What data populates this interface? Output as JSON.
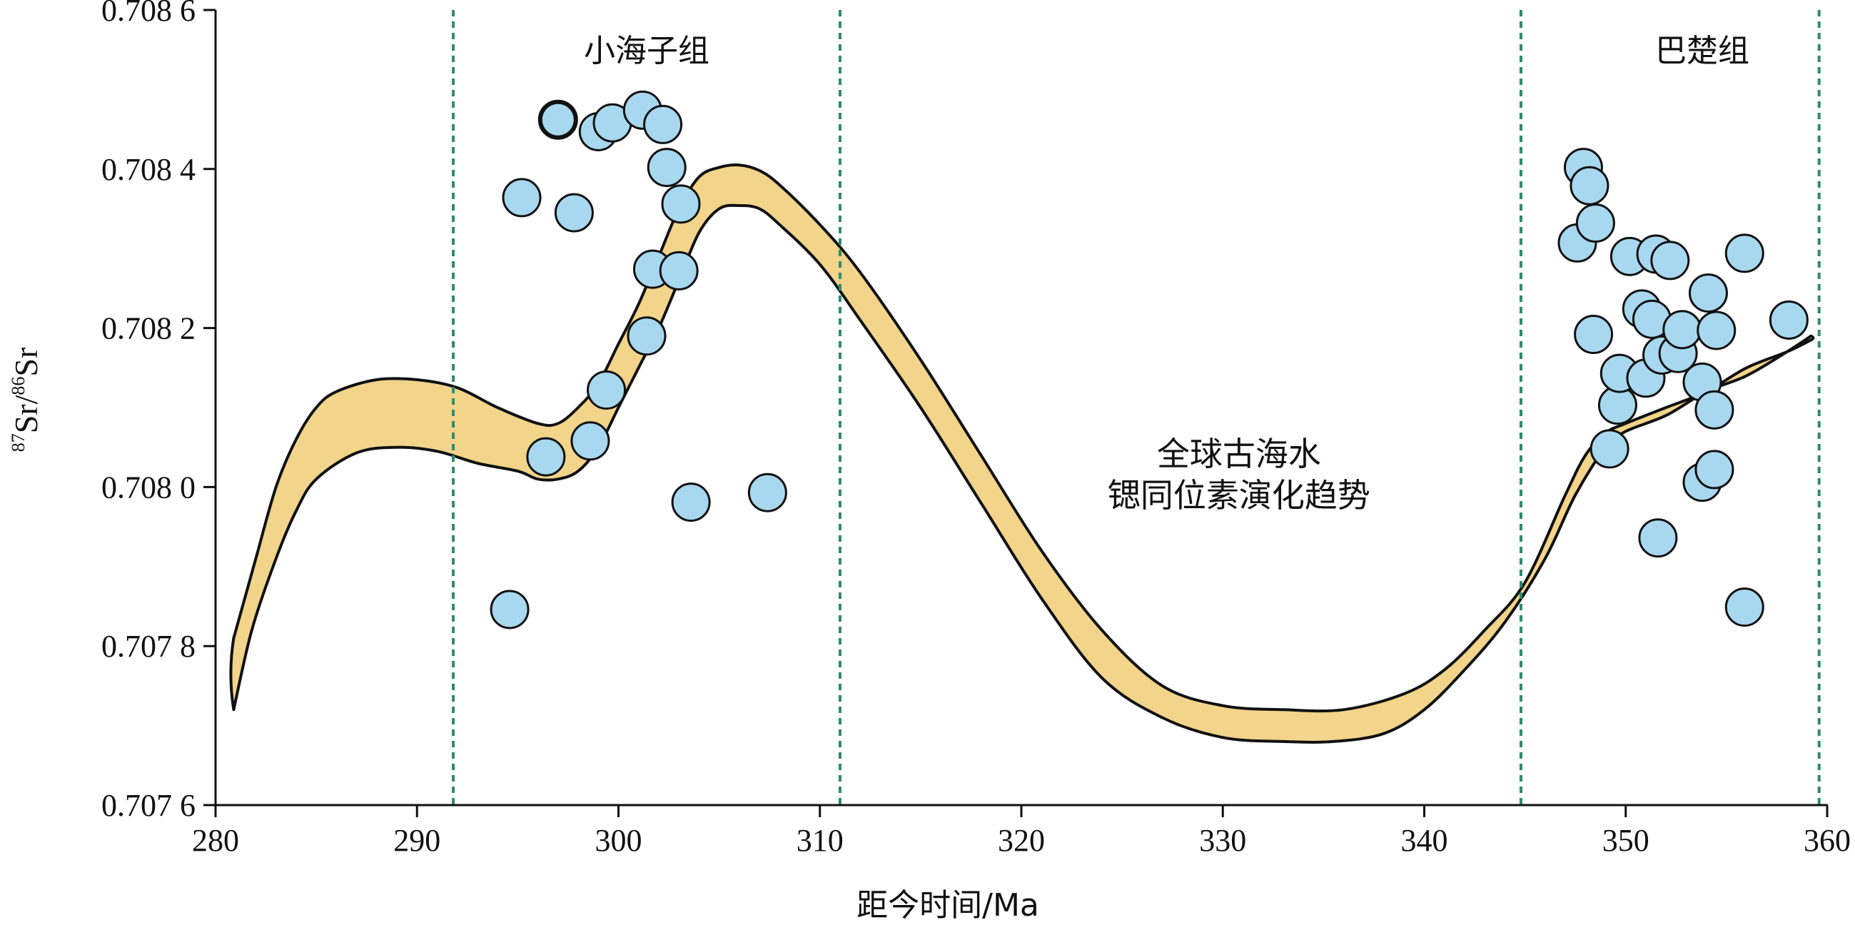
{
  "chart_data": {
    "type": "scatter",
    "xlabel": "距今时间/Ma",
    "ylabel": {
      "sup1": "87",
      "part1": "Sr/",
      "sup2": "86",
      "part2": "Sr"
    },
    "xlim": [
      280,
      360
    ],
    "ylim": [
      0.7076,
      0.7086
    ],
    "x_ticks": [
      280,
      290,
      300,
      310,
      320,
      330,
      340,
      350,
      360
    ],
    "y_ticks": [
      0.7076,
      0.7078,
      0.708,
      0.7082,
      0.7084,
      0.7086
    ],
    "y_tick_labels": [
      "0.707 6",
      "0.707 8",
      "0.708 0",
      "0.708 2",
      "0.708 4",
      "0.708 6"
    ],
    "boundaries": [
      291.8,
      311.0,
      344.8,
      359.6
    ],
    "boundary_color": "#2e8b6e",
    "band_color": "#f2d48a",
    "point_color": "#a8d8ef",
    "formation_labels": [
      {
        "text": "小海子组",
        "x": 301.4,
        "y": 0.70855
      },
      {
        "text": "巴楚组",
        "x": 353.8,
        "y": 0.70855
      }
    ],
    "curve_label": {
      "lines": [
        "全球古海水",
        "锶同位素演化趋势"
      ],
      "x": 330.8
    },
    "series": [
      {
        "values": [
          [
            297.0,
            0.708462
          ],
          [
            294.6,
            0.707846
          ],
          [
            295.2,
            0.708364
          ],
          [
            296.4,
            0.708038
          ],
          [
            297.8,
            0.708345
          ],
          [
            298.6,
            0.708058
          ],
          [
            299.0,
            0.708447
          ],
          [
            299.4,
            0.708122
          ],
          [
            299.7,
            0.708458
          ],
          [
            301.2,
            0.708474
          ],
          [
            301.4,
            0.70819
          ],
          [
            301.7,
            0.708274
          ],
          [
            302.2,
            0.708456
          ],
          [
            302.4,
            0.708402
          ],
          [
            303.0,
            0.708272
          ],
          [
            303.1,
            0.708356
          ],
          [
            303.6,
            0.707981
          ],
          [
            307.4,
            0.707993
          ],
          [
            347.6,
            0.708307
          ],
          [
            347.9,
            0.708402
          ],
          [
            348.2,
            0.708379
          ],
          [
            348.4,
            0.708192
          ],
          [
            348.5,
            0.708332
          ],
          [
            349.2,
            0.708048
          ],
          [
            349.6,
            0.708103
          ],
          [
            349.7,
            0.708143
          ],
          [
            350.2,
            0.70829
          ],
          [
            350.8,
            0.708224
          ],
          [
            351.0,
            0.708137
          ],
          [
            351.3,
            0.708211
          ],
          [
            351.5,
            0.708293
          ],
          [
            351.6,
            0.707936
          ],
          [
            351.8,
            0.708166
          ],
          [
            352.2,
            0.708285
          ],
          [
            352.6,
            0.708168
          ],
          [
            352.8,
            0.708198
          ],
          [
            353.8,
            0.708132
          ],
          [
            353.8,
            0.708006
          ],
          [
            354.1,
            0.708244
          ],
          [
            354.4,
            0.708022
          ],
          [
            354.4,
            0.708097
          ],
          [
            354.5,
            0.708197
          ],
          [
            355.9,
            0.707849
          ],
          [
            355.9,
            0.708294
          ],
          [
            358.1,
            0.70821
          ]
        ],
        "highlight_index": 0
      }
    ],
    "trend_band": {
      "upper": [
        [
          280.9,
          0.70781
        ],
        [
          282.0,
          0.70791
        ],
        [
          283.0,
          0.708
        ],
        [
          284.0,
          0.70806
        ],
        [
          285.0,
          0.7081
        ],
        [
          286.0,
          0.70812
        ],
        [
          288.0,
          0.708135
        ],
        [
          290.0,
          0.708135
        ],
        [
          292.0,
          0.708125
        ],
        [
          294.0,
          0.7081
        ],
        [
          296.0,
          0.70808
        ],
        [
          297.0,
          0.70808
        ],
        [
          298.0,
          0.7081
        ],
        [
          299.0,
          0.70813
        ],
        [
          300.0,
          0.70818
        ],
        [
          301.0,
          0.70823
        ],
        [
          302.0,
          0.70829
        ],
        [
          303.0,
          0.70835
        ],
        [
          304.0,
          0.70839
        ],
        [
          305.0,
          0.708402
        ],
        [
          306.0,
          0.708405
        ],
        [
          307.0,
          0.708398
        ],
        [
          308.0,
          0.70838
        ],
        [
          310.0,
          0.70833
        ],
        [
          312.0,
          0.70827
        ],
        [
          315.0,
          0.70816
        ],
        [
          318.0,
          0.70804
        ],
        [
          321.0,
          0.70792
        ],
        [
          324.0,
          0.70782
        ],
        [
          327.0,
          0.70775
        ],
        [
          330.0,
          0.707725
        ],
        [
          333.0,
          0.70772
        ],
        [
          336.0,
          0.70772
        ],
        [
          339.0,
          0.70774
        ],
        [
          341.0,
          0.70777
        ],
        [
          343.0,
          0.70782
        ],
        [
          345.0,
          0.70788
        ],
        [
          347.0,
          0.70799
        ],
        [
          348.0,
          0.70804
        ],
        [
          349.0,
          0.708068
        ],
        [
          350.0,
          0.70808
        ],
        [
          352.0,
          0.7081
        ],
        [
          354.0,
          0.70812
        ],
        [
          356.0,
          0.70815
        ],
        [
          358.0,
          0.70817
        ],
        [
          359.2,
          0.708185
        ]
      ],
      "lower": [
        [
          280.9,
          0.70772
        ],
        [
          281.8,
          0.70782
        ],
        [
          283.0,
          0.70791
        ],
        [
          284.0,
          0.70797
        ],
        [
          285.0,
          0.70801
        ],
        [
          287.0,
          0.708043
        ],
        [
          289.0,
          0.70805
        ],
        [
          291.0,
          0.708045
        ],
        [
          293.0,
          0.70803
        ],
        [
          295.0,
          0.70802
        ],
        [
          296.0,
          0.70801
        ],
        [
          297.0,
          0.70801
        ],
        [
          298.0,
          0.70802
        ],
        [
          299.0,
          0.70805
        ],
        [
          300.0,
          0.7081
        ],
        [
          301.0,
          0.70815
        ],
        [
          302.0,
          0.7082
        ],
        [
          303.0,
          0.70826
        ],
        [
          304.0,
          0.70832
        ],
        [
          305.0,
          0.70835
        ],
        [
          306.0,
          0.708354
        ],
        [
          307.0,
          0.70835
        ],
        [
          308.0,
          0.70833
        ],
        [
          310.0,
          0.70828
        ],
        [
          312.0,
          0.70821
        ],
        [
          315.0,
          0.7081
        ],
        [
          318.0,
          0.70798
        ],
        [
          321.0,
          0.70786
        ],
        [
          324.0,
          0.70776
        ],
        [
          327.0,
          0.70771
        ],
        [
          330.0,
          0.707685
        ],
        [
          333.0,
          0.70768
        ],
        [
          335.5,
          0.70768
        ],
        [
          338.0,
          0.70769
        ],
        [
          340.0,
          0.70772
        ],
        [
          342.0,
          0.70777
        ],
        [
          344.0,
          0.70783
        ],
        [
          346.0,
          0.70791
        ],
        [
          347.5,
          0.70799
        ],
        [
          349.0,
          0.70805
        ],
        [
          350.0,
          0.70807
        ],
        [
          352.0,
          0.70809
        ],
        [
          354.0,
          0.70812
        ],
        [
          356.0,
          0.70814
        ],
        [
          358.0,
          0.70817
        ],
        [
          359.2,
          0.70819
        ]
      ]
    }
  }
}
